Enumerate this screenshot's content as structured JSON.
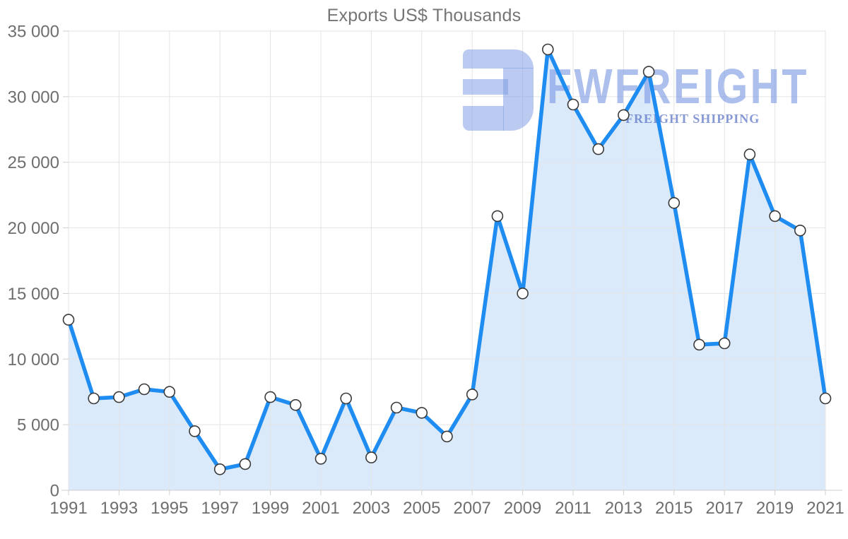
{
  "title": "Exports US$ Thousands",
  "watermark": {
    "brand": "FWFREIGHT",
    "tagline": "FREIGHT SHIPPING",
    "icon_color": "#b7c8f0",
    "brand_color": "#a4baee",
    "tagline_color": "#8099db"
  },
  "chart_data": {
    "type": "area",
    "title": "Exports US$ Thousands",
    "x": [
      1991,
      1992,
      1993,
      1994,
      1995,
      1996,
      1997,
      1998,
      1999,
      2000,
      2001,
      2002,
      2003,
      2004,
      2005,
      2006,
      2007,
      2008,
      2009,
      2010,
      2011,
      2012,
      2013,
      2014,
      2015,
      2016,
      2017,
      2018,
      2019,
      2020,
      2021
    ],
    "series": [
      {
        "name": "Exports US$ Thousands",
        "values": [
          13000,
          7000,
          7100,
          7700,
          7500,
          4500,
          1600,
          2000,
          7100,
          6500,
          2400,
          7000,
          2500,
          6300,
          5900,
          4100,
          7300,
          20900,
          15000,
          33600,
          29400,
          26000,
          28600,
          31900,
          21900,
          11100,
          11200,
          25600,
          20900,
          19800,
          7000
        ]
      }
    ],
    "xlabel": "",
    "ylabel": "",
    "ylim": [
      0,
      35000
    ],
    "ytick_step": 5000,
    "ytick_labels": [
      "0",
      "5 000",
      "10 000",
      "15 000",
      "20 000",
      "25 000",
      "30 000",
      "35 000"
    ],
    "xtick_years": [
      1991,
      1993,
      1995,
      1997,
      1999,
      2001,
      2003,
      2005,
      2007,
      2009,
      2011,
      2013,
      2015,
      2017,
      2019,
      2021
    ],
    "grid": true,
    "legend": "none",
    "line_color": "#1e8cf0",
    "area_color": "#dbeafb",
    "grid_color": "#e4e4e4",
    "axis_color": "#cfcfcf",
    "label_color": "#6e6e6e",
    "marker_fill": "#ffffff",
    "marker_stroke": "#3a3a3a"
  }
}
